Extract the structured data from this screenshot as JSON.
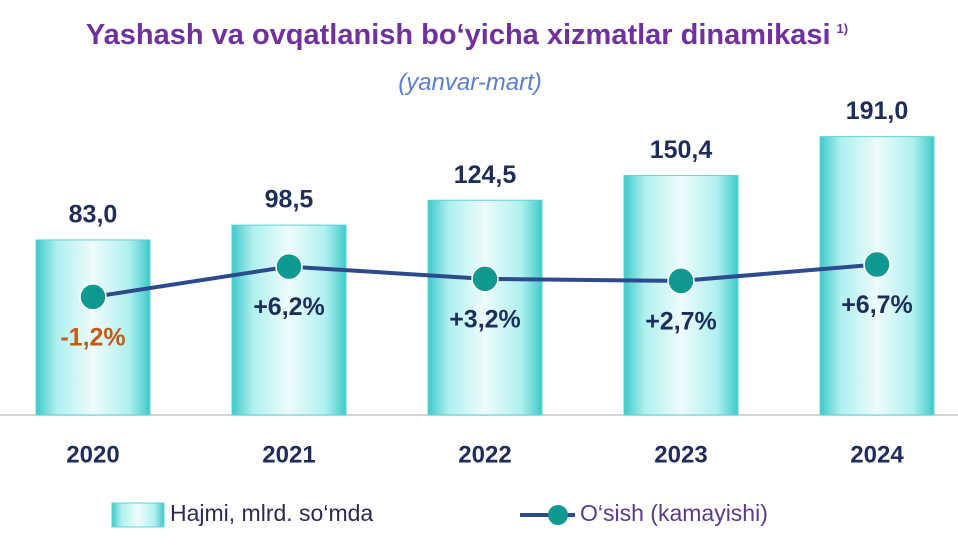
{
  "chart_data": {
    "type": "bar",
    "title": "Yashash va ovqatlanish bo‘yicha xizmatlar dinamikasi",
    "title_note": "1)",
    "subtitle": "(yanvar-mart)",
    "categories": [
      "2020",
      "2021",
      "2022",
      "2023",
      "2024"
    ],
    "ylim": [
      -100,
      200
    ],
    "y2lim": [
      -30,
      40
    ],
    "legend": "bottom",
    "negative_label_color": "#c55a11",
    "series": [
      {
        "name": "Hajmi, mlrd. so‘mda",
        "type": "bar",
        "color": "#5fd3d3",
        "values": [
          83.0,
          98.5,
          124.5,
          150.4,
          191.0
        ],
        "value_labels": [
          "83,0",
          "98,5",
          "124,5",
          "150,4",
          "191,0"
        ]
      },
      {
        "name": "O‘sish (kamayishi)",
        "type": "line",
        "axis": "y2",
        "color": "#2e4a8e",
        "marker_color": "#0e9a92",
        "values": [
          -1.2,
          6.2,
          3.2,
          2.7,
          6.7
        ],
        "value_labels": [
          "-1,2%",
          "+6,2%",
          "+3,2%",
          "+2,7%",
          "+6,7%"
        ]
      }
    ]
  }
}
